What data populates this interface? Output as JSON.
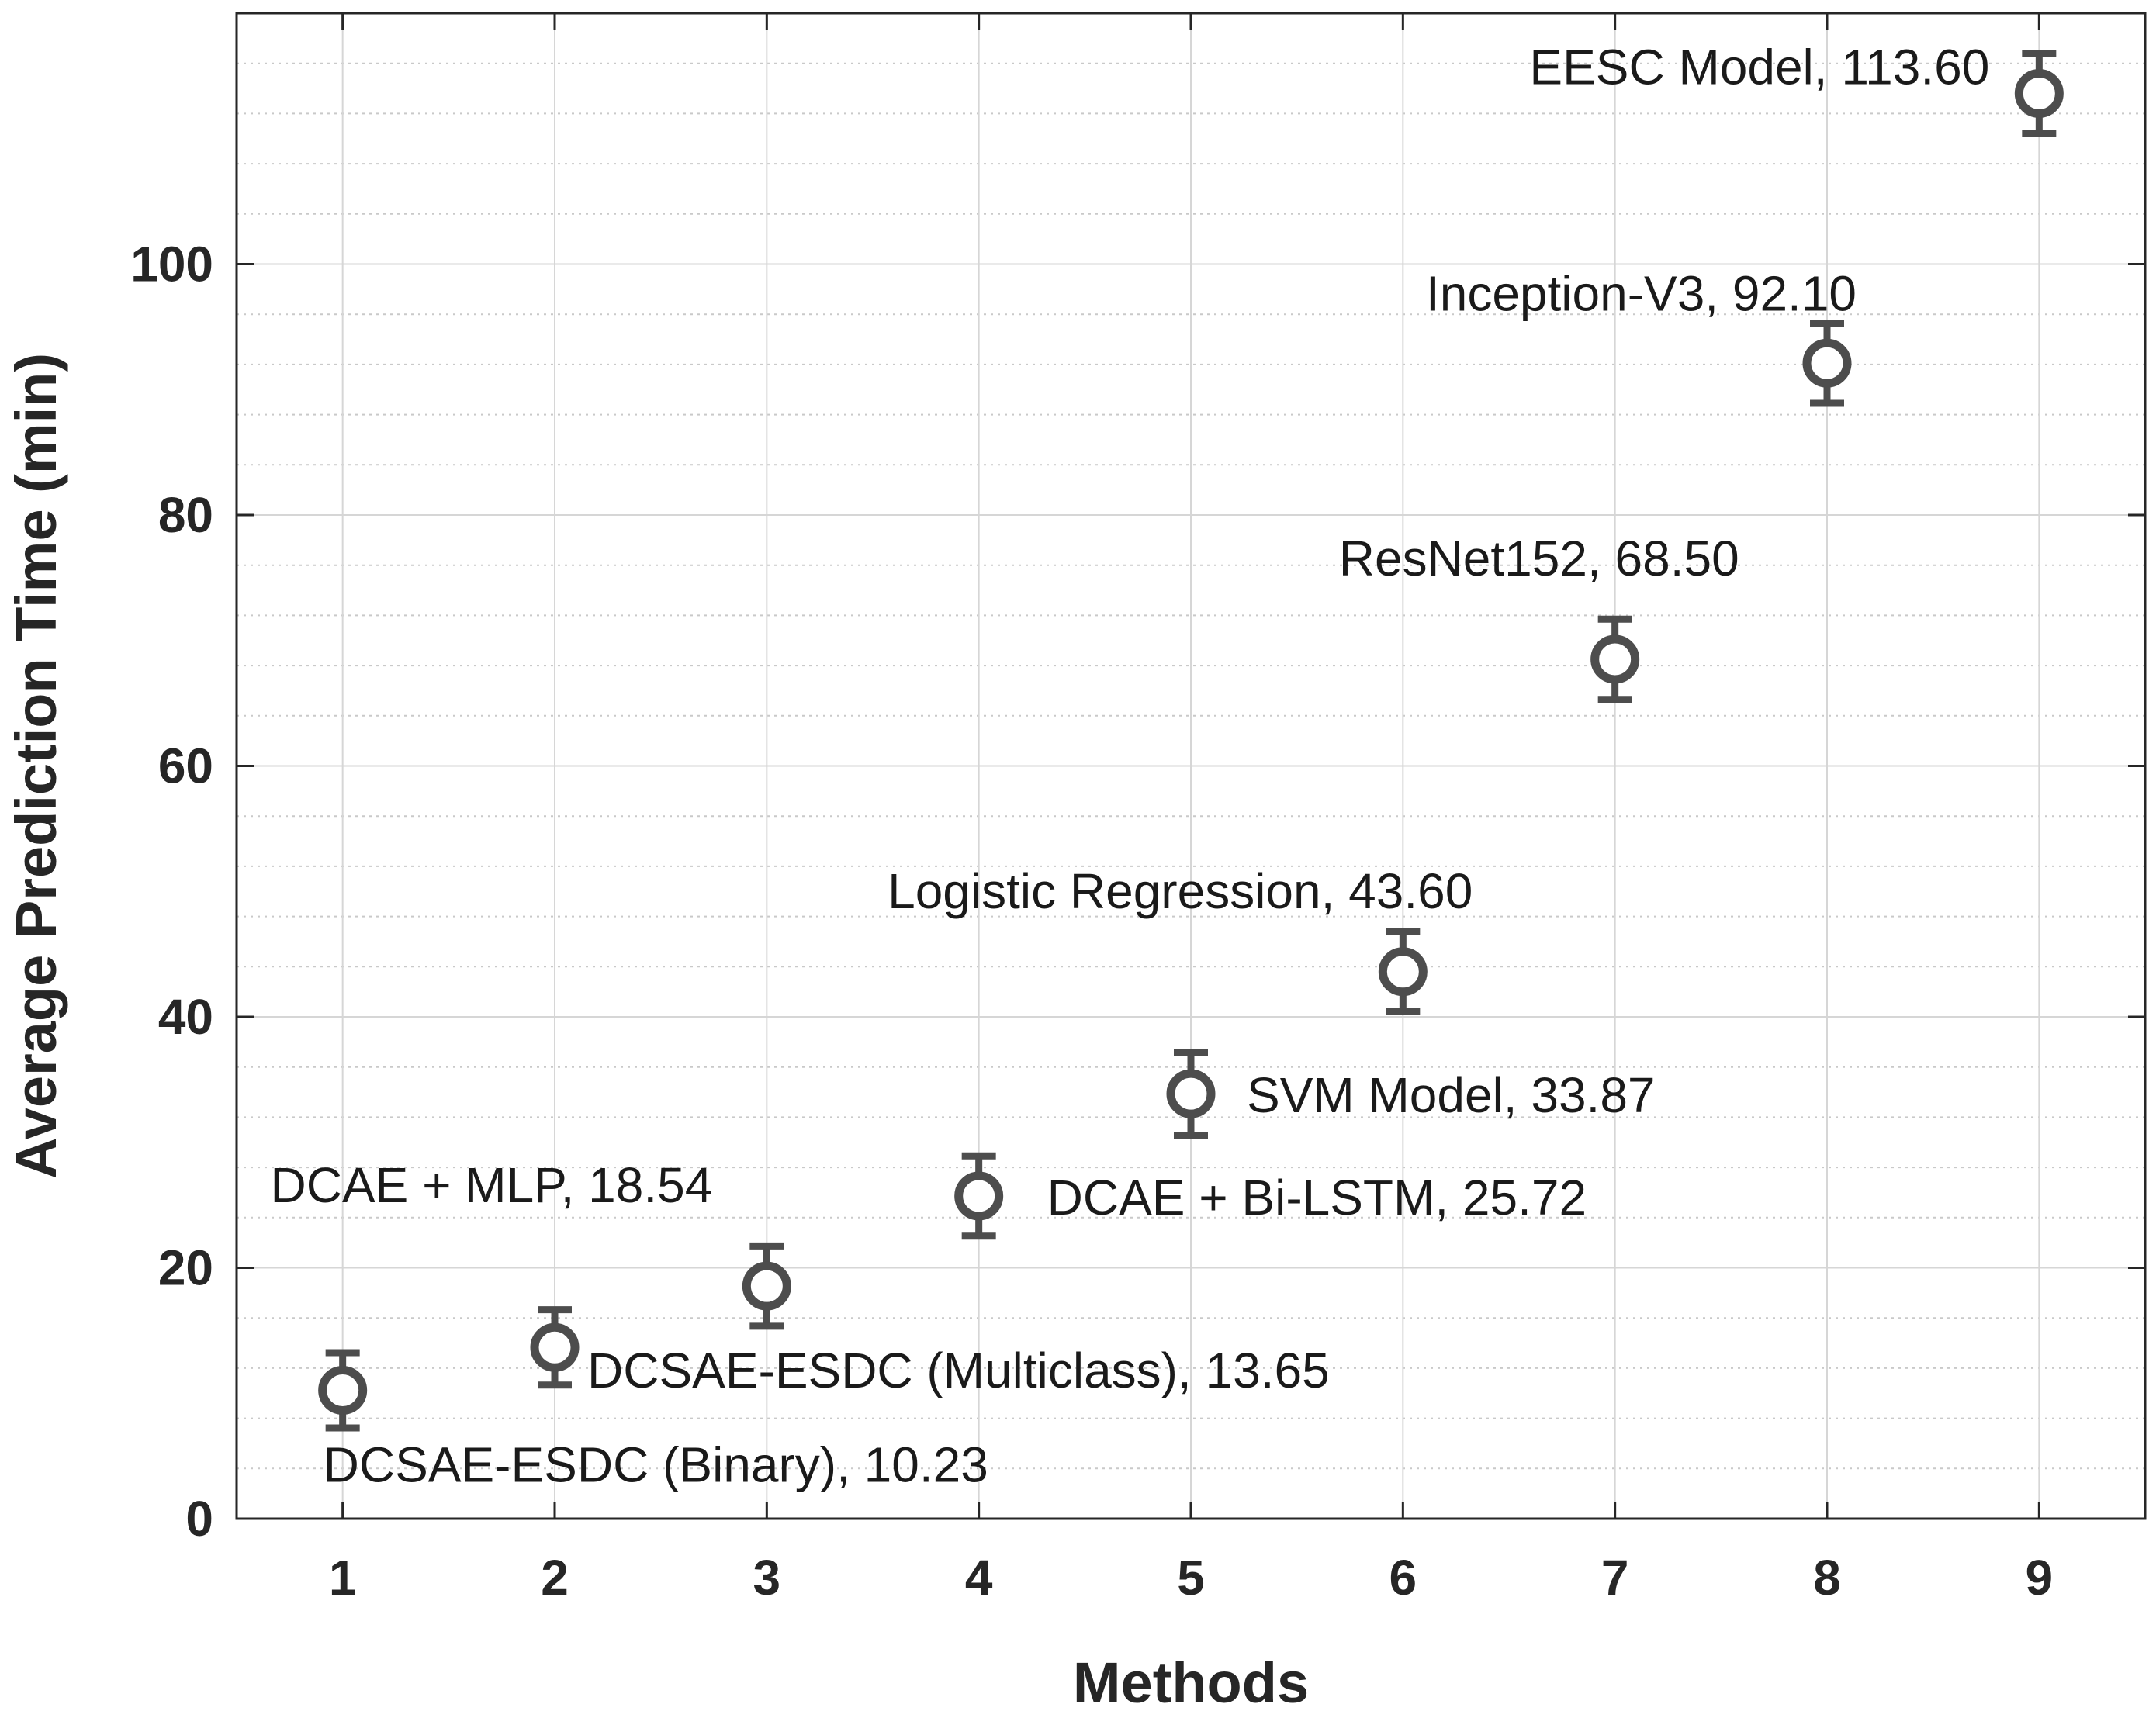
{
  "chart_data": {
    "type": "scatter",
    "xlabel": "Methods",
    "ylabel": "Average Prediction Time (min)",
    "xlim": [
      0.5,
      9.5
    ],
    "ylim": [
      0,
      120
    ],
    "xticks": [
      1,
      2,
      3,
      4,
      5,
      6,
      7,
      8,
      9
    ],
    "yticks": [
      0,
      20,
      40,
      60,
      80,
      100
    ],
    "grid": true,
    "minor_grid": true,
    "marker": "circle",
    "marker_color": "#4d4d4d",
    "points": [
      {
        "x": 1,
        "y": 10.23,
        "err": 3.0,
        "label": "DCSAE-ESDC (Binary), 10.23"
      },
      {
        "x": 2,
        "y": 13.65,
        "err": 3.0,
        "label": "DCSAE-ESDC (Multiclass), 13.65"
      },
      {
        "x": 3,
        "y": 18.54,
        "err": 3.2,
        "label": "DCAE + MLP, 18.54"
      },
      {
        "x": 4,
        "y": 25.72,
        "err": 3.2,
        "label": "DCAE + Bi-LSTM, 25.72"
      },
      {
        "x": 5,
        "y": 33.87,
        "err": 3.3,
        "label": "SVM Model, 33.87"
      },
      {
        "x": 6,
        "y": 43.6,
        "err": 3.2,
        "label": "Logistic Regression, 43.60"
      },
      {
        "x": 7,
        "y": 68.5,
        "err": 3.2,
        "label": "ResNet152, 68.50"
      },
      {
        "x": 8,
        "y": 92.1,
        "err": 3.2,
        "label": "Inception-V3, 92.10"
      },
      {
        "x": 9,
        "y": 113.6,
        "err": 3.2,
        "label": "EESC Model, 113.60"
      }
    ]
  }
}
